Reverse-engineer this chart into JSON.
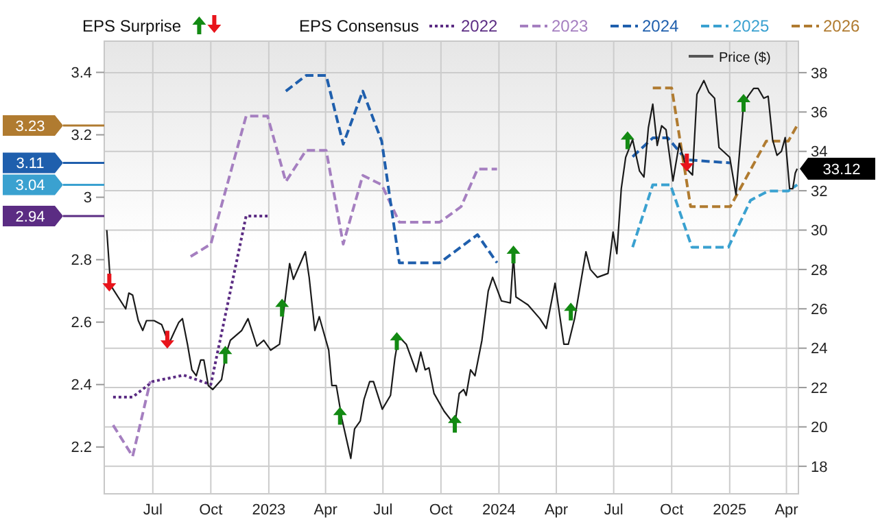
{
  "chart_data": {
    "type": "line",
    "legend": "top",
    "legend_title": "EPS Consensus",
    "grid": true,
    "annotations": [
      "EPS Surprise"
    ],
    "ref_lines": [
      {
        "axis": "y",
        "value": 3.23,
        "label": "3.23",
        "color": "#b07b30"
      },
      {
        "axis": "y",
        "value": 3.11,
        "label": "3.11",
        "color": "#1f5fad"
      },
      {
        "axis": "y",
        "value": 3.04,
        "label": "3.04",
        "color": "#3aa1d0"
      },
      {
        "axis": "y",
        "value": 2.94,
        "label": "2.94",
        "color": "#5b2c83"
      }
    ],
    "xlim": [
      "2022-04-15",
      "2025-04-20"
    ],
    "xticks": [
      {
        "value": "2022-07-01",
        "label": "Jul"
      },
      {
        "value": "2022-10-01",
        "label": "Oct"
      },
      {
        "value": "2023-01-01",
        "label": "2023"
      },
      {
        "value": "2023-04-01",
        "label": "Apr"
      },
      {
        "value": "2023-07-01",
        "label": "Jul"
      },
      {
        "value": "2023-10-01",
        "label": "Oct"
      },
      {
        "value": "2024-01-01",
        "label": "2024"
      },
      {
        "value": "2024-04-01",
        "label": "Apr"
      },
      {
        "value": "2024-07-01",
        "label": "Jul"
      },
      {
        "value": "2024-10-01",
        "label": "Oct"
      },
      {
        "value": "2025-01-01",
        "label": "2025"
      },
      {
        "value": "2025-04-01",
        "label": "Apr"
      }
    ],
    "ylim": [
      2.05,
      3.5
    ],
    "yticks": [
      2.2,
      2.4,
      2.6,
      2.8,
      3,
      3.2,
      3.4
    ],
    "y2lim": [
      16.6,
      39.6
    ],
    "y2ticks": [
      18,
      20,
      22,
      24,
      26,
      28,
      30,
      32,
      34,
      36,
      38
    ],
    "series": [
      {
        "name": "2022",
        "type": "line",
        "axis": "y",
        "color": "#5b2c83",
        "line_style": "dotted",
        "x": [
          "2022-04-29",
          "2022-05-30",
          "2022-07-01",
          "2022-08-19",
          "2022-10-01",
          "2022-11-26",
          "2022-12-30"
        ],
        "values": [
          2.36,
          2.36,
          2.41,
          2.43,
          2.4,
          2.94,
          2.94
        ]
      },
      {
        "name": "2023",
        "type": "line",
        "axis": "y",
        "color": "#a57fc0",
        "line_style": "dashed",
        "x": [
          "2022-04-29",
          "2022-05-30",
          "2022-06-27",
          "2022-07-25",
          "2022-08-30",
          "2022-10-01",
          "2022-11-26",
          "2022-12-30",
          "2023-01-28",
          "2023-03-01",
          "2023-04-02",
          "2023-04-29",
          "2023-05-30",
          "2023-06-29",
          "2023-07-27",
          "2023-09-29",
          "2023-11-02",
          "2023-11-28",
          "2023-12-29"
        ],
        "values": [
          2.27,
          2.17,
          2.41,
          null,
          2.81,
          2.85,
          3.26,
          3.26,
          3.05,
          3.15,
          3.15,
          2.85,
          3.07,
          3.04,
          2.92,
          2.92,
          2.97,
          3.09,
          3.09
        ]
      },
      {
        "name": "2024",
        "type": "line",
        "axis": "y",
        "color": "#1f5fad",
        "line_style": "dashed",
        "x": [
          "2023-01-28",
          "2023-03-01",
          "2023-04-02",
          "2023-04-29",
          "2023-05-30",
          "2023-06-29",
          "2023-07-27",
          "2023-09-29",
          "2023-11-28",
          "2023-12-29",
          "2024-04-01",
          "2024-07-31",
          "2024-09-01",
          "2024-09-25",
          "2024-10-24",
          "2025-01-02"
        ],
        "values": [
          3.34,
          3.39,
          3.39,
          3.17,
          3.34,
          3.18,
          2.79,
          2.79,
          2.88,
          2.79,
          null,
          3.13,
          3.19,
          3.19,
          3.12,
          3.11
        ]
      },
      {
        "name": "2025",
        "type": "line",
        "axis": "y",
        "color": "#3aa1d0",
        "line_style": "dashed",
        "x": [
          "2024-07-31",
          "2024-09-01",
          "2024-09-29",
          "2024-11-02",
          "2024-12-30",
          "2025-02-03",
          "2025-03-03",
          "2025-04-04",
          "2025-04-18"
        ],
        "values": [
          2.84,
          3.04,
          3.04,
          2.84,
          2.84,
          2.99,
          3.02,
          3.02,
          3.04
        ]
      },
      {
        "name": "2026",
        "type": "line",
        "axis": "y",
        "color": "#b07b30",
        "line_style": "dashed",
        "x": [
          "2024-09-01",
          "2024-10-01",
          "2024-10-31",
          "2025-01-02",
          "2025-02-28",
          "2025-04-04",
          "2025-04-18"
        ],
        "values": [
          3.35,
          3.35,
          2.97,
          2.97,
          3.18,
          3.18,
          3.23
        ]
      },
      {
        "name": "Price ($)",
        "type": "line",
        "axis": "y2",
        "color": "#1a1a1a",
        "line_style": "solid",
        "x": [
          "2022-04-19",
          "2022-04-25",
          "2022-05-19",
          "2022-05-24",
          "2022-05-30",
          "2022-06-08",
          "2022-06-15",
          "2022-06-21",
          "2022-07-03",
          "2022-07-15",
          "2022-07-21",
          "2022-07-26",
          "2022-08-11",
          "2022-08-17",
          "2022-08-25",
          "2022-09-01",
          "2022-09-08",
          "2022-09-15",
          "2022-09-20",
          "2022-09-27",
          "2022-10-04",
          "2022-10-18",
          "2022-10-25",
          "2022-11-01",
          "2022-11-19",
          "2022-11-29",
          "2022-12-13",
          "2022-12-24",
          "2023-01-04",
          "2023-01-18",
          "2023-01-25",
          "2023-02-03",
          "2023-02-09",
          "2023-02-28",
          "2023-03-06",
          "2023-03-15",
          "2023-03-22",
          "2023-04-06",
          "2023-04-11",
          "2023-04-18",
          "2023-04-27",
          "2023-05-11",
          "2023-05-17",
          "2023-05-26",
          "2023-06-01",
          "2023-06-10",
          "2023-06-16",
          "2023-06-30",
          "2023-07-13",
          "2023-07-20",
          "2023-07-26",
          "2023-08-07",
          "2023-08-23",
          "2023-08-30",
          "2023-09-06",
          "2023-09-12",
          "2023-09-20",
          "2023-10-06",
          "2023-10-23",
          "2023-10-30",
          "2023-11-06",
          "2023-11-10",
          "2023-11-17",
          "2023-11-24",
          "2023-12-05",
          "2023-12-15",
          "2023-12-22",
          "2023-12-29",
          "2024-01-05",
          "2024-01-19",
          "2024-01-24",
          "2024-01-28",
          "2024-02-16",
          "2024-03-06",
          "2024-03-16",
          "2024-03-30",
          "2024-04-13",
          "2024-04-20",
          "2024-04-30",
          "2024-05-18",
          "2024-05-25",
          "2024-06-05",
          "2024-06-22",
          "2024-06-30",
          "2024-07-06",
          "2024-07-13",
          "2024-07-20",
          "2024-07-31",
          "2024-08-11",
          "2024-08-18",
          "2024-08-25",
          "2024-09-01",
          "2024-09-08",
          "2024-09-15",
          "2024-09-22",
          "2024-10-03",
          "2024-10-13",
          "2024-10-25",
          "2024-11-03",
          "2024-11-10",
          "2024-11-21",
          "2024-11-29",
          "2024-12-08",
          "2024-12-15",
          "2025-01-01",
          "2025-01-11",
          "2025-01-23",
          "2025-01-30",
          "2025-02-08",
          "2025-02-15",
          "2025-02-24",
          "2025-03-03",
          "2025-03-10",
          "2025-03-17",
          "2025-03-24",
          "2025-03-30",
          "2025-04-06",
          "2025-04-11",
          "2025-04-15",
          "2025-04-18"
        ],
        "values": [
          30.0,
          27.2,
          26.0,
          26.8,
          26.7,
          25.4,
          24.9,
          25.4,
          25.4,
          25.2,
          24.7,
          24.2,
          25.3,
          25.5,
          24.2,
          22.9,
          22.6,
          23.4,
          23.4,
          22.1,
          21.9,
          22.4,
          23.7,
          24.4,
          24.9,
          25.5,
          24.1,
          24.4,
          23.9,
          24.2,
          26.0,
          28.3,
          27.5,
          28.9,
          27.6,
          24.9,
          25.6,
          23.9,
          22.1,
          22.1,
          20.4,
          18.4,
          19.9,
          20.3,
          21.4,
          22.3,
          22.3,
          20.9,
          21.6,
          23.5,
          24.6,
          24.2,
          22.8,
          23.8,
          22.9,
          23.0,
          21.7,
          20.8,
          20.1,
          21.7,
          21.9,
          21.6,
          22.9,
          22.6,
          24.4,
          26.9,
          27.6,
          27.0,
          26.4,
          26.3,
          28.7,
          26.6,
          26.2,
          25.5,
          25.0,
          27.3,
          24.2,
          24.2,
          25.5,
          28.9,
          28.0,
          27.6,
          27.8,
          29.9,
          28.8,
          32.1,
          33.7,
          34.6,
          33.0,
          32.7,
          35.2,
          36.4,
          34.3,
          35.3,
          35.1,
          32.5,
          34.4,
          33.1,
          32.8,
          36.9,
          37.6,
          37.0,
          36.7,
          34.2,
          33.7,
          31.8,
          36.4,
          36.8,
          37.2,
          37.2,
          36.7,
          36.8,
          34.6,
          33.8,
          34.0,
          34.7,
          32.1,
          32.1,
          32.9,
          33.12
        ],
        "value_labels": [
          null,
          null,
          null,
          null,
          null,
          null,
          null,
          null,
          null,
          null,
          null,
          null,
          null,
          null,
          null,
          null,
          null,
          null,
          null,
          null,
          null,
          null,
          null,
          null,
          null,
          null,
          null,
          null,
          null,
          null,
          null,
          null,
          null,
          null,
          null,
          null,
          null,
          null,
          null,
          null,
          null,
          null,
          null,
          null,
          null,
          null,
          null,
          null,
          null,
          null,
          null,
          null,
          null,
          null,
          null,
          null,
          null,
          null,
          null,
          null,
          null,
          null,
          null,
          null,
          null,
          null,
          null,
          null,
          null,
          null,
          null,
          null,
          null,
          null,
          null,
          null,
          null,
          null,
          null,
          null,
          null,
          null,
          null,
          null,
          null,
          null,
          null,
          null,
          null,
          null,
          null,
          null,
          null,
          null,
          null,
          null,
          null,
          null,
          null,
          null,
          null,
          null,
          null,
          null,
          null,
          null,
          null,
          null,
          null,
          null,
          null,
          null,
          null,
          null,
          null,
          null,
          null,
          null,
          null,
          "33.12"
        ]
      },
      {
        "type": "scatter",
        "axis": "y2",
        "color": "#138a13",
        "marker": "triangle",
        "x": [
          "2022-10-24",
          "2023-01-22",
          "2023-04-24",
          "2023-07-23",
          "2023-10-23",
          "2024-01-24",
          "2024-04-24",
          "2024-07-23",
          "2025-01-23"
        ],
        "values": [
          23.7,
          26.1,
          20.6,
          24.4,
          20.2,
          28.8,
          25.9,
          34.6,
          36.5
        ]
      },
      {
        "type": "scatter",
        "axis": "y2",
        "color": "#e8141b",
        "marker": "triangle-down",
        "x": [
          "2022-04-23",
          "2022-07-24",
          "2024-10-25"
        ],
        "values": [
          27.3,
          24.4,
          33.4
        ]
      }
    ]
  }
}
